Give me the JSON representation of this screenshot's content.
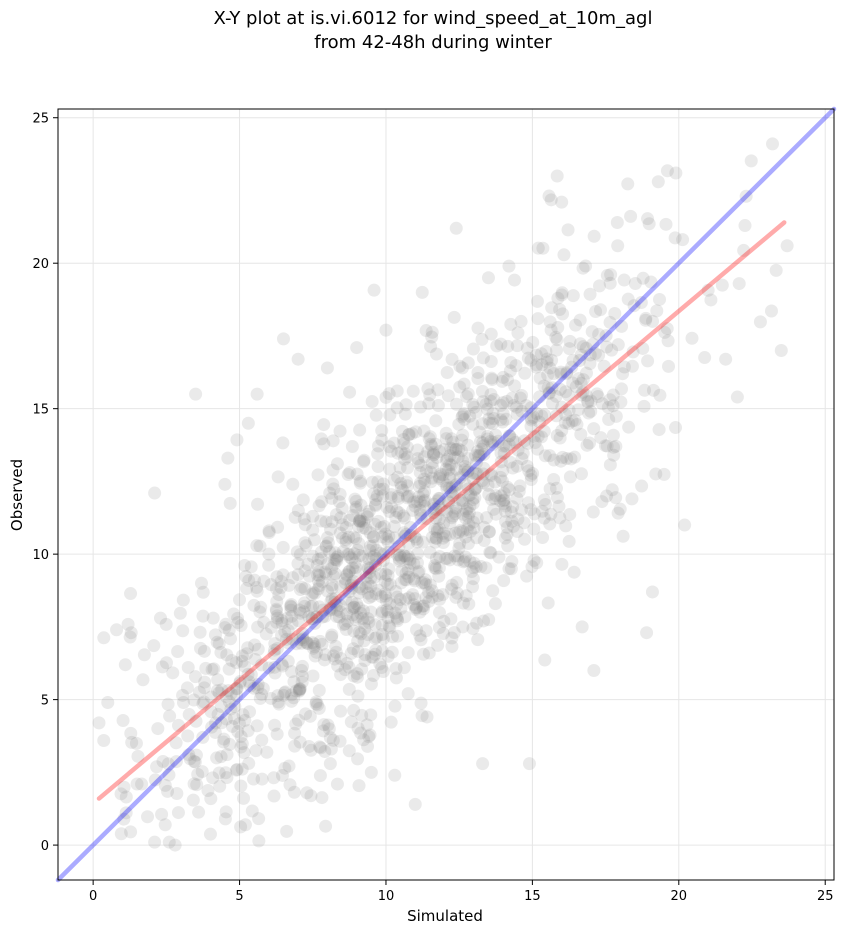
{
  "chart_data": {
    "type": "scatter",
    "title_line1": "X-Y plot at is.vi.6012 for wind_speed_at_10m_agl",
    "title_line2": "from 42-48h during winter",
    "xlabel": "Simulated",
    "ylabel": "Observed",
    "xlim": [
      -1.2,
      25.3
    ],
    "ylim": [
      -1.2,
      25.3
    ],
    "xticks": [
      0,
      5,
      10,
      15,
      20,
      25
    ],
    "yticks": [
      0,
      5,
      10,
      15,
      20,
      25
    ],
    "grid": true,
    "scatter_color": "#808080",
    "sample_points": [
      [
        0.2,
        4.2
      ],
      [
        0.5,
        4.9
      ],
      [
        0.8,
        7.4
      ],
      [
        1.1,
        6.2
      ],
      [
        1.3,
        7.3
      ],
      [
        1.5,
        2.1
      ],
      [
        2.1,
        12.1
      ],
      [
        2.3,
        7.8
      ],
      [
        2.1,
        0.1
      ],
      [
        2.6,
        0.1
      ],
      [
        2.8,
        0.0
      ],
      [
        3.5,
        15.5
      ],
      [
        3.7,
        9.0
      ],
      [
        4.1,
        7.8
      ],
      [
        4.5,
        12.4
      ],
      [
        4.6,
        13.3
      ],
      [
        5.2,
        0.7
      ],
      [
        5.3,
        14.5
      ],
      [
        5.6,
        15.5
      ],
      [
        6.0,
        10.0
      ],
      [
        6.5,
        17.4
      ],
      [
        7.0,
        16.7
      ],
      [
        7.5,
        11.3
      ],
      [
        7.3,
        1.8
      ],
      [
        8.0,
        16.4
      ],
      [
        8.1,
        2.8
      ],
      [
        9.0,
        17.1
      ],
      [
        9.5,
        2.5
      ],
      [
        10.0,
        17.7
      ],
      [
        10.3,
        2.4
      ],
      [
        11.0,
        1.4
      ],
      [
        12.4,
        21.2
      ],
      [
        13.3,
        2.8
      ],
      [
        13.5,
        19.5
      ],
      [
        14.2,
        19.9
      ],
      [
        14.9,
        2.8
      ],
      [
        15.5,
        16.6
      ],
      [
        16.0,
        22.1
      ],
      [
        16.7,
        7.5
      ],
      [
        17.1,
        6.0
      ],
      [
        17.9,
        21.4
      ],
      [
        18.4,
        11.9
      ],
      [
        18.9,
        7.3
      ],
      [
        19.1,
        8.7
      ],
      [
        19.3,
        22.8
      ],
      [
        19.9,
        23.1
      ],
      [
        20.2,
        11.0
      ],
      [
        21.6,
        16.7
      ],
      [
        22.0,
        15.4
      ],
      [
        22.3,
        22.3
      ],
      [
        23.2,
        24.1
      ],
      [
        23.5,
        17.0
      ],
      [
        23.7,
        20.6
      ]
    ],
    "series": [
      {
        "color": "#0000ff",
        "x": [
          -1.2,
          25.3
        ],
        "y": [
          -1.2,
          25.3
        ]
      },
      {
        "color": "#ff0000",
        "x": [
          0.2,
          23.6
        ],
        "y": [
          1.6,
          21.4
        ]
      }
    ]
  }
}
